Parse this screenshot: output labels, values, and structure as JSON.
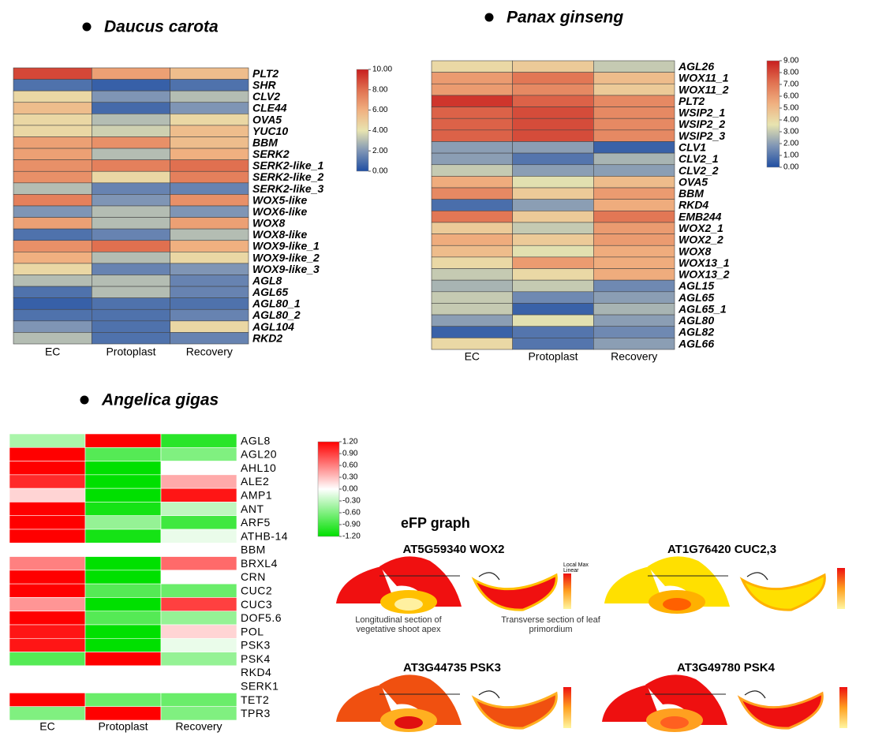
{
  "chart_data": [
    {
      "type": "heatmap",
      "title": "Daucus carota",
      "rows": [
        "PLT2",
        "SHR",
        "CLV2",
        "CLE44",
        "OVA5",
        "YUC10",
        "BBM",
        "SERK2",
        "SERK2-like_1",
        "SERK2-like_2",
        "SERK2-like_3",
        "WOX5-like",
        "WOX6-like",
        "WOX8",
        "WOX8-like",
        "WOX9-like_1",
        "WOX9-like_2",
        "WOX9-like_3",
        "AGL8",
        "AGL65",
        "AGL80_1",
        "AGL80_2",
        "AGL104",
        "RKD2"
      ],
      "columns": [
        "EC",
        "Protoplast",
        "Recovery"
      ],
      "values": [
        [
          9,
          6.5,
          5.5
        ],
        [
          1,
          0.5,
          1
        ],
        [
          4.5,
          2,
          3
        ],
        [
          5.5,
          0.8,
          2
        ],
        [
          4.5,
          3,
          4.5
        ],
        [
          4.5,
          3.5,
          5.5
        ],
        [
          6.5,
          7,
          5.5
        ],
        [
          6.5,
          3,
          6
        ],
        [
          7,
          7.5,
          8
        ],
        [
          7,
          4.5,
          7.5
        ],
        [
          3,
          1.5,
          1.5
        ],
        [
          7.5,
          2,
          7
        ],
        [
          2,
          3,
          2
        ],
        [
          6.5,
          3,
          6.5
        ],
        [
          1,
          1.5,
          3
        ],
        [
          7,
          8,
          6
        ],
        [
          6,
          3,
          4.5
        ],
        [
          4.5,
          1.5,
          2
        ],
        [
          3,
          3,
          1.5
        ],
        [
          1,
          3,
          1.5
        ],
        [
          0.5,
          1,
          1
        ],
        [
          1,
          1,
          1.5
        ],
        [
          2,
          1,
          4.5
        ],
        [
          3,
          1,
          1.5
        ]
      ],
      "zlim": [
        0,
        10
      ],
      "zticks": [
        {
          "value": 0,
          "label": "0.00"
        },
        {
          "value": 2,
          "label": "2.00"
        },
        {
          "value": 4,
          "label": "4.00"
        },
        {
          "value": 6,
          "label": "6.00"
        },
        {
          "value": 8,
          "label": "8.00"
        },
        {
          "value": 10,
          "label": "10.00"
        }
      ],
      "colormap": [
        "#1f4ea3",
        "#7f95b5",
        "#e8e4b0",
        "#f0b080",
        "#e07050",
        "#c81e1e"
      ]
    },
    {
      "type": "heatmap",
      "title": "Panax ginseng",
      "rows": [
        "AGL26",
        "WOX11_1",
        "WOX11_2",
        "PLT2",
        "WSIP2_1",
        "WSIP2_2",
        "WSIP2_3",
        "CLV1",
        "CLV2_1",
        "CLV2_2",
        "OVA5",
        "BBM",
        "RKD4",
        "EMB244",
        "WOX2_1",
        "WOX2_2",
        "WOX8",
        "WOX13_1",
        "WOX13_2",
        "AGL15",
        "AGL65",
        "AGL65_1",
        "AGL80",
        "AGL82",
        "AGL66"
      ],
      "columns": [
        "EC",
        "Protoplast",
        "Recovery"
      ],
      "values": [
        [
          4,
          4.5,
          3
        ],
        [
          6,
          7,
          5
        ],
        [
          6,
          6.5,
          4.5
        ],
        [
          8.5,
          7.5,
          6.5
        ],
        [
          7.5,
          8,
          6.5
        ],
        [
          7.5,
          8,
          6.5
        ],
        [
          7.5,
          8,
          6.5
        ],
        [
          2,
          2,
          0.5
        ],
        [
          2,
          1,
          2.5
        ],
        [
          3,
          2,
          2
        ],
        [
          5.5,
          3.5,
          5
        ],
        [
          6.5,
          4.5,
          6
        ],
        [
          0.8,
          2,
          5.5
        ],
        [
          7,
          4.5,
          7
        ],
        [
          4.5,
          3,
          6
        ],
        [
          5.5,
          4.5,
          6
        ],
        [
          5,
          3.5,
          5.5
        ],
        [
          4,
          6,
          5.5
        ],
        [
          3,
          4,
          5.5
        ],
        [
          2.5,
          3,
          1.5
        ],
        [
          3,
          1.5,
          2
        ],
        [
          3,
          0.5,
          2.5
        ],
        [
          2,
          3.5,
          2
        ],
        [
          0.5,
          1,
          1.5
        ],
        [
          4,
          1,
          2
        ]
      ],
      "zlim": [
        0,
        9
      ],
      "zticks": [
        {
          "value": 0,
          "label": "0.00"
        },
        {
          "value": 1,
          "label": "1.00"
        },
        {
          "value": 2,
          "label": "2.00"
        },
        {
          "value": 3,
          "label": "3.00"
        },
        {
          "value": 4,
          "label": "4.00"
        },
        {
          "value": 5,
          "label": "5.00"
        },
        {
          "value": 6,
          "label": "6.00"
        },
        {
          "value": 7,
          "label": "7.00"
        },
        {
          "value": 8,
          "label": "8.00"
        },
        {
          "value": 9,
          "label": "9.00"
        }
      ],
      "colormap": [
        "#1f4ea3",
        "#7f95b5",
        "#e8e4b0",
        "#f0b080",
        "#e07050",
        "#c81e1e"
      ]
    },
    {
      "type": "heatmap",
      "title": "Angelica gigas",
      "rows": [
        "AGL8",
        "AGL20",
        "AHL10",
        "ALE2",
        "AMP1",
        "ANT",
        "ARF5",
        "ATHB-14",
        "BBM",
        "BRXL4",
        "CRN",
        "CUC2",
        "CUC3",
        "DOF5.6",
        "POL",
        "PSK3",
        "PSK4",
        "RKD4",
        "SERK1",
        "TET2",
        "TPR3"
      ],
      "columns": [
        "EC",
        "Protoplast",
        "Recovery"
      ],
      "values": [
        [
          -0.4,
          1.2,
          -1.0
        ],
        [
          1.2,
          -0.8,
          -0.6
        ],
        [
          1.2,
          -1.2,
          0
        ],
        [
          1.0,
          -1.2,
          0.4
        ],
        [
          0.2,
          -1.2,
          1.1
        ],
        [
          1.2,
          -1.1,
          -0.3
        ],
        [
          1.2,
          -0.5,
          -0.9
        ],
        [
          1.2,
          -1.1,
          -0.1
        ],
        [
          null,
          null,
          null
        ],
        [
          0.6,
          -1.2,
          0.7
        ],
        [
          1.2,
          -1.2,
          0
        ],
        [
          1.2,
          -0.8,
          -0.7
        ],
        [
          0.5,
          -1.2,
          0.9
        ],
        [
          1.2,
          -0.8,
          -0.5
        ],
        [
          1.1,
          -1.2,
          0.2
        ],
        [
          1.1,
          -1.2,
          -0.1
        ],
        [
          -0.8,
          1.2,
          -0.5
        ],
        [
          null,
          null,
          null
        ],
        [
          null,
          null,
          null
        ],
        [
          1.2,
          -0.7,
          -0.7
        ],
        [
          -0.6,
          1.2,
          -0.6
        ]
      ],
      "zlim": [
        -1.2,
        1.2
      ],
      "zticks": [
        {
          "value": 1.2,
          "label": "1.20"
        },
        {
          "value": 0.9,
          "label": "0.90"
        },
        {
          "value": 0.6,
          "label": "0.60"
        },
        {
          "value": 0.3,
          "label": "0.30"
        },
        {
          "value": 0,
          "label": "0.00"
        },
        {
          "value": -0.3,
          "label": "-0.30"
        },
        {
          "value": -0.6,
          "label": "-0.60"
        },
        {
          "value": -0.9,
          "label": "-0.90"
        },
        {
          "value": -1.2,
          "label": "-1.20"
        }
      ],
      "colormap": [
        "#00e000",
        "#ffffff",
        "#ff0000"
      ]
    }
  ],
  "efp": {
    "title": "eFP graph",
    "panels": [
      "AT5G59340 WOX2",
      "AT1G76420 CUC2,3",
      "AT3G44735 PSK3",
      "AT3G49780 PSK4"
    ],
    "captions": [
      [
        "Longitudinal section of",
        "vegetative shoot apex"
      ],
      [
        "Transverse section of leaf",
        "primordium"
      ]
    ],
    "legend_title": [
      "Local Max",
      "Linear"
    ]
  }
}
